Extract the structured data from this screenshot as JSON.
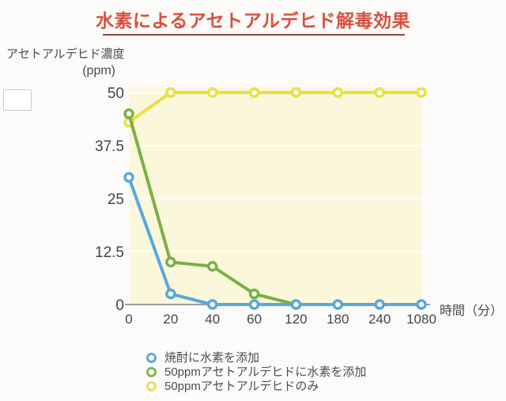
{
  "page": {
    "background": "#fcfbf9"
  },
  "title": {
    "text": "水素によるアセトアルデヒド解毒効果",
    "color": "#d9503c",
    "underline_color": "#8a4a3c"
  },
  "y_axis": {
    "title_line1": "アセトアルデヒド濃度",
    "title_line2": "(ppm)"
  },
  "x_axis": {
    "label": "時間（分）"
  },
  "legend": {
    "items": [
      {
        "label": "焼酎に水素を添加",
        "color": "#5fa8dc"
      },
      {
        "label": "50ppmアセトアルデヒドに水素を添加",
        "color": "#82b655"
      },
      {
        "label": "50ppmアセトアルデヒドのみ",
        "color": "#e3df63"
      }
    ]
  },
  "chart_data": {
    "type": "line",
    "title": "水素によるアセトアルデヒド解毒効果",
    "xlabel": "時間（分）",
    "ylabel": "アセトアルデヒド濃度 (ppm)",
    "categories": [
      "0",
      "20",
      "40",
      "60",
      "120",
      "180",
      "240",
      "1080"
    ],
    "y_ticks": [
      {
        "label": "50",
        "value": 50
      },
      {
        "label": "37.5",
        "value": 37.5
      },
      {
        "label": "25",
        "value": 25
      },
      {
        "label": "12.5",
        "value": 12.5
      },
      {
        "label": "0",
        "value": 0
      }
    ],
    "ylim": [
      0,
      50
    ],
    "grid": true,
    "legend_position": "bottom",
    "plot_background": "#fbf7db",
    "grid_color": "rgba(255,255,255,0.9)",
    "axis_color": "#9c9c9c",
    "tick_color": "#454545",
    "series": [
      {
        "name": "焼酎に水素を添加",
        "color": "#58a8db",
        "values": [
          30,
          2.5,
          0,
          0,
          0,
          0,
          0,
          0
        ]
      },
      {
        "name": "50ppmアセトアルデヒドに水素を添加",
        "color": "#79b144",
        "values": [
          45,
          10,
          9,
          2.5,
          0,
          null,
          null,
          null
        ]
      },
      {
        "name": "50ppmアセトアルデヒドのみ",
        "color": "#e8e23f",
        "values": [
          43,
          50,
          50,
          50,
          50,
          50,
          50,
          50
        ]
      }
    ]
  }
}
